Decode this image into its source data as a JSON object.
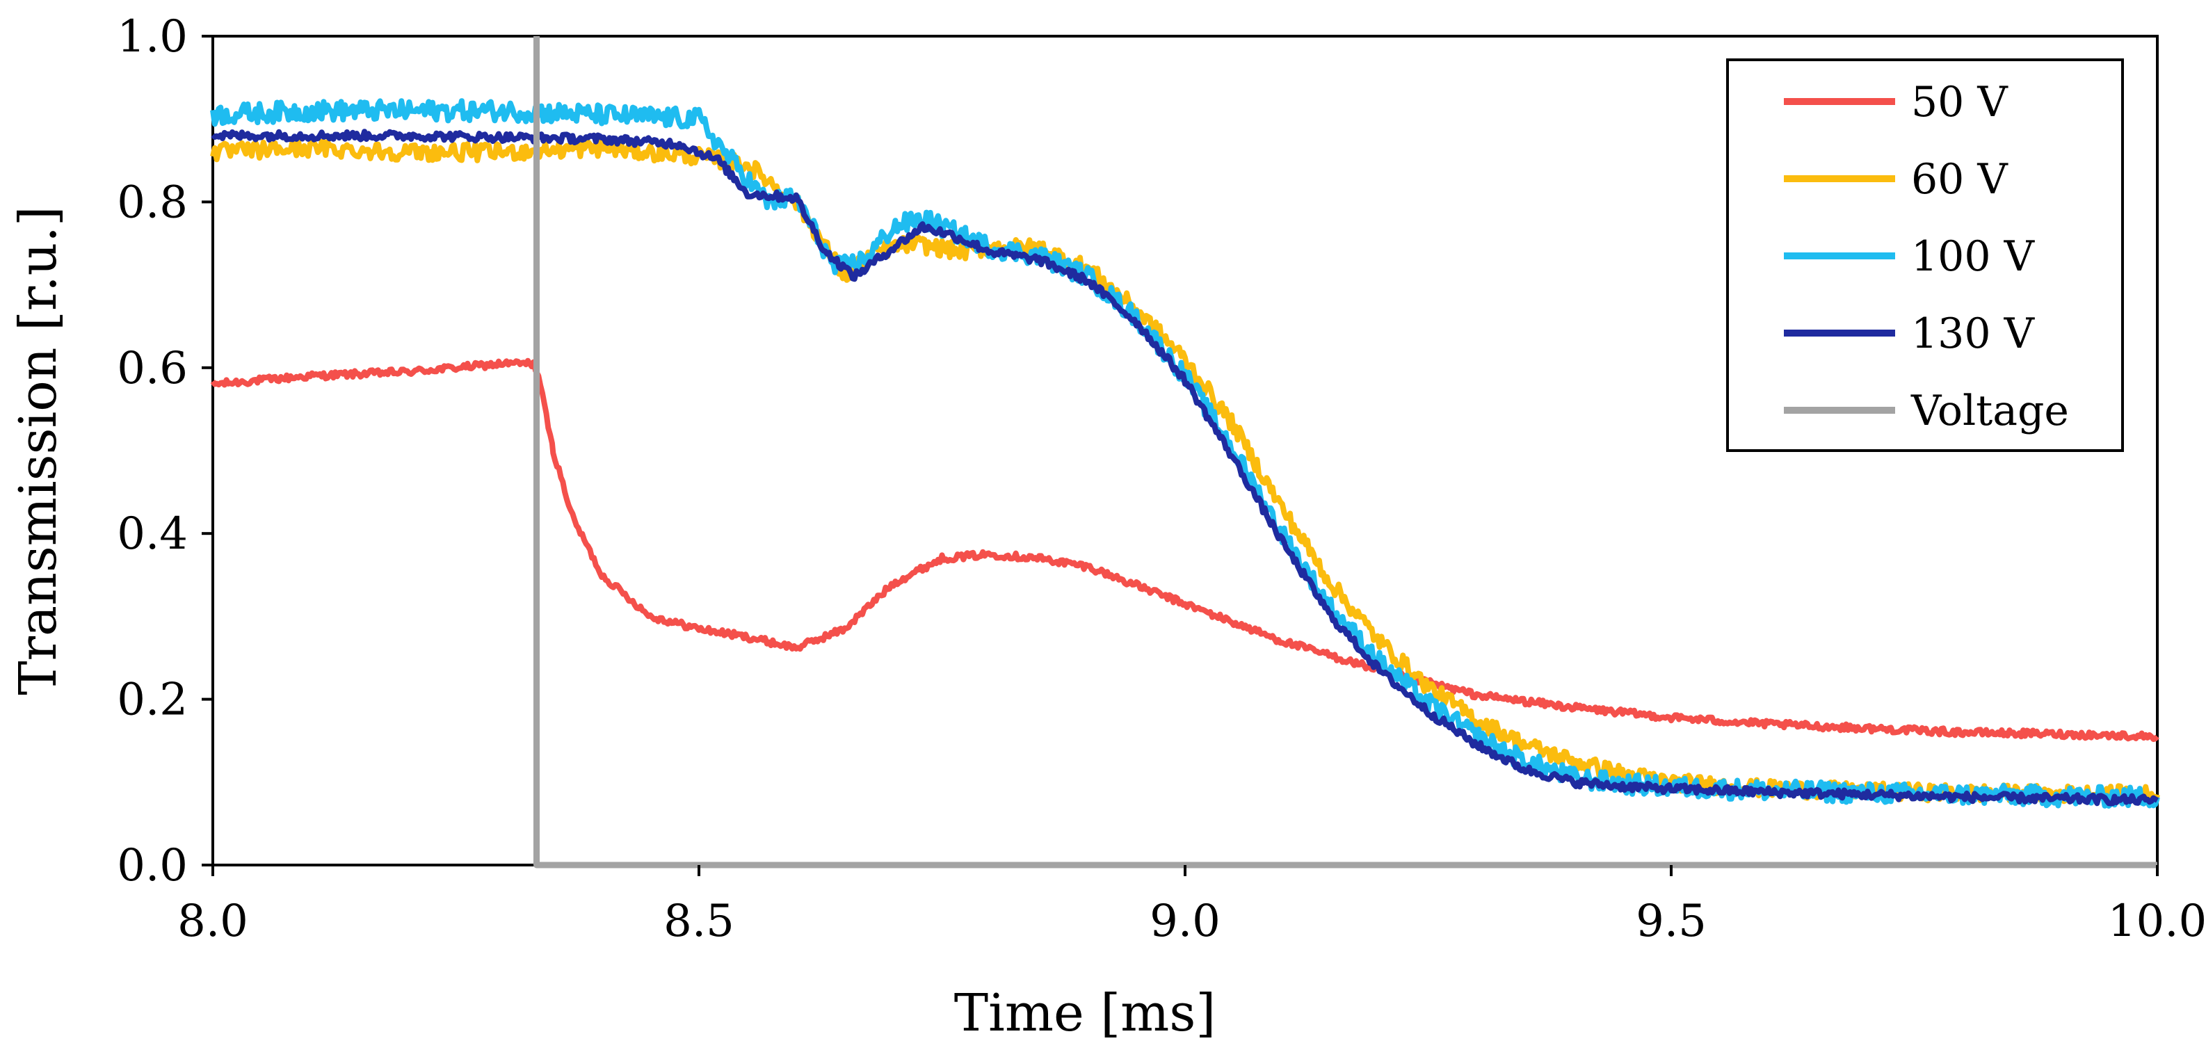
{
  "chart_data": {
    "type": "line",
    "title": "",
    "xlabel": "Time [ms]",
    "ylabel": "Transmission [r.u.]",
    "xlim": [
      8.0,
      10.0
    ],
    "ylim": [
      0.0,
      1.0
    ],
    "xticks": [
      8.0,
      8.5,
      9.0,
      9.5,
      10.0
    ],
    "xtick_labels": [
      "8.0",
      "8.5",
      "9.0",
      "9.5",
      "10.0"
    ],
    "yticks": [
      0.0,
      0.2,
      0.4,
      0.6,
      0.8,
      1.0
    ],
    "ytick_labels": [
      "0.0",
      "0.2",
      "0.4",
      "0.6",
      "0.8",
      "1.0"
    ],
    "grid": false,
    "legend_position": "top-right",
    "series": [
      {
        "name": "50 V",
        "color": "#f4504b",
        "noise": 0.004,
        "x": [
          8.0,
          8.1,
          8.2,
          8.3,
          8.33,
          8.335,
          8.35,
          8.37,
          8.4,
          8.45,
          8.5,
          8.55,
          8.6,
          8.65,
          8.7,
          8.75,
          8.8,
          8.85,
          8.9,
          9.0,
          9.1,
          9.2,
          9.3,
          9.4,
          9.5,
          9.6,
          9.7,
          9.8,
          9.9,
          10.0
        ],
        "y": [
          0.58,
          0.59,
          0.595,
          0.605,
          0.605,
          0.59,
          0.5,
          0.42,
          0.35,
          0.3,
          0.285,
          0.275,
          0.262,
          0.285,
          0.34,
          0.37,
          0.375,
          0.37,
          0.36,
          0.315,
          0.27,
          0.235,
          0.205,
          0.19,
          0.178,
          0.17,
          0.165,
          0.16,
          0.158,
          0.155
        ]
      },
      {
        "name": "60 V",
        "color": "#fbbc0e",
        "noise": 0.01,
        "x": [
          8.0,
          8.1,
          8.2,
          8.3,
          8.4,
          8.5,
          8.55,
          8.6,
          8.65,
          8.68,
          8.72,
          8.77,
          8.8,
          8.85,
          8.9,
          8.95,
          9.0,
          9.05,
          9.1,
          9.15,
          9.2,
          9.25,
          9.3,
          9.35,
          9.4,
          9.45,
          9.5,
          9.6,
          9.7,
          9.8,
          9.9,
          10.0
        ],
        "y": [
          0.86,
          0.865,
          0.86,
          0.86,
          0.865,
          0.855,
          0.845,
          0.8,
          0.71,
          0.74,
          0.75,
          0.74,
          0.745,
          0.745,
          0.72,
          0.67,
          0.61,
          0.53,
          0.43,
          0.34,
          0.27,
          0.215,
          0.175,
          0.145,
          0.125,
          0.11,
          0.1,
          0.092,
          0.089,
          0.087,
          0.086,
          0.085
        ]
      },
      {
        "name": "100 V",
        "color": "#1fbcf0",
        "noise": 0.012,
        "x": [
          8.0,
          8.1,
          8.2,
          8.3,
          8.4,
          8.5,
          8.53,
          8.57,
          8.6,
          8.64,
          8.67,
          8.7,
          8.73,
          8.76,
          8.8,
          8.85,
          8.9,
          8.95,
          9.0,
          9.05,
          9.1,
          9.15,
          9.2,
          9.25,
          9.3,
          9.35,
          9.4,
          9.45,
          9.5,
          9.6,
          9.7,
          9.8,
          9.9,
          10.0
        ],
        "y": [
          0.905,
          0.91,
          0.91,
          0.91,
          0.905,
          0.9,
          0.855,
          0.8,
          0.805,
          0.72,
          0.73,
          0.77,
          0.78,
          0.765,
          0.745,
          0.735,
          0.71,
          0.66,
          0.59,
          0.5,
          0.4,
          0.31,
          0.245,
          0.195,
          0.155,
          0.125,
          0.105,
          0.098,
          0.094,
          0.09,
          0.087,
          0.085,
          0.083,
          0.082
        ]
      },
      {
        "name": "130 V",
        "color": "#1f2b9f",
        "noise": 0.005,
        "x": [
          8.0,
          8.1,
          8.2,
          8.3,
          8.4,
          8.48,
          8.52,
          8.55,
          8.6,
          8.63,
          8.66,
          8.7,
          8.73,
          8.76,
          8.8,
          8.85,
          8.9,
          8.95,
          9.0,
          9.05,
          9.1,
          9.15,
          9.2,
          9.25,
          9.3,
          9.35,
          9.4,
          9.45,
          9.5,
          9.6,
          9.7,
          9.8,
          9.9,
          10.0
        ],
        "y": [
          0.88,
          0.88,
          0.88,
          0.878,
          0.876,
          0.87,
          0.85,
          0.81,
          0.805,
          0.74,
          0.71,
          0.745,
          0.77,
          0.76,
          0.74,
          0.73,
          0.705,
          0.655,
          0.585,
          0.49,
          0.39,
          0.3,
          0.235,
          0.185,
          0.145,
          0.115,
          0.1,
          0.095,
          0.092,
          0.088,
          0.085,
          0.082,
          0.08,
          0.078
        ]
      },
      {
        "name": "Voltage",
        "color": "#a3a3a3",
        "noise": 0,
        "x": [
          8.333,
          8.333,
          10.0
        ],
        "y": [
          1.0,
          0.0,
          0.0
        ]
      }
    ]
  }
}
